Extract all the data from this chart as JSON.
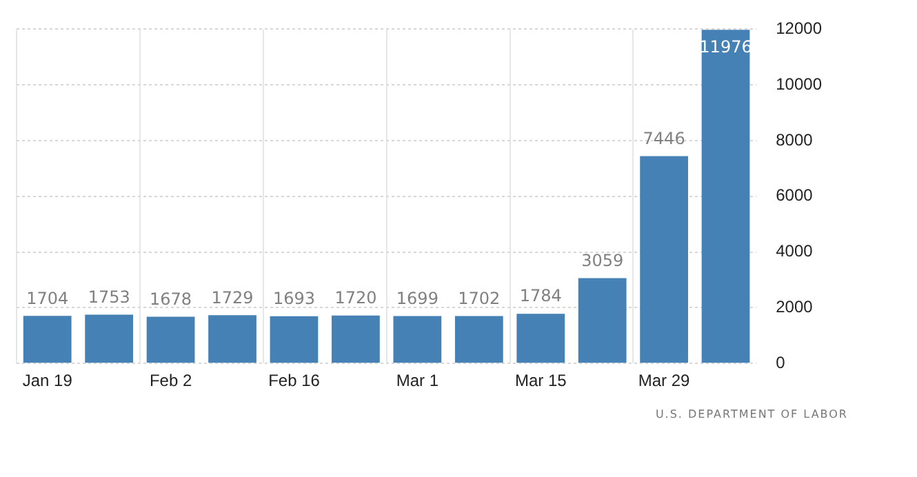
{
  "chart_data": {
    "type": "bar",
    "categories": [
      "Jan 19",
      null,
      "Feb 2",
      null,
      "Feb 16",
      null,
      "Mar 1",
      null,
      "Mar 15",
      null,
      "Mar 29",
      null
    ],
    "values": [
      1704,
      1753,
      1678,
      1729,
      1693,
      1720,
      1699,
      1702,
      1784,
      3059,
      7446,
      11976
    ],
    "color": "#4681b6",
    "ylim": [
      0,
      12000
    ],
    "yticks": [
      0,
      2000,
      4000,
      6000,
      8000,
      10000,
      12000
    ],
    "grid": true,
    "data_labels": true,
    "annotations": [
      "U.S. DEPARTMENT OF LABOR"
    ]
  }
}
